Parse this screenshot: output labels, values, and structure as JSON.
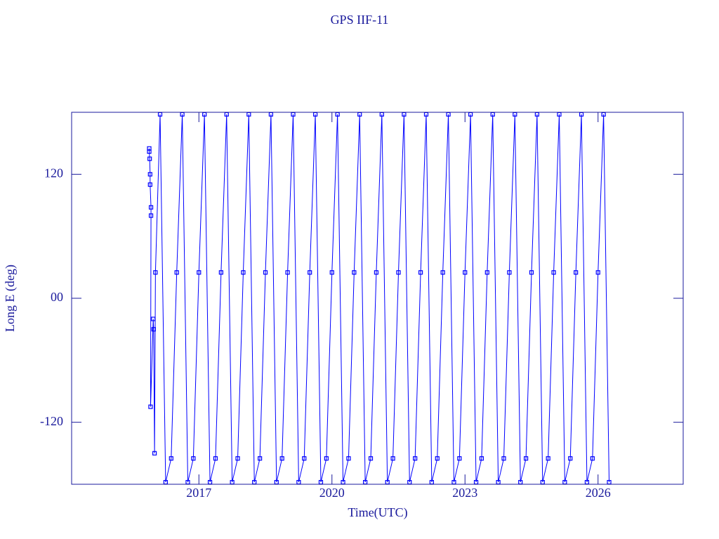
{
  "chart_data": {
    "type": "line",
    "title": "GPS IIF-11",
    "x_label": "Time(UTC)",
    "y_label": "Long E (deg)",
    "xlim": [
      2014.13,
      2027.92
    ],
    "xticks": [
      2017,
      2020,
      2023,
      2026
    ],
    "ylim": [
      -180,
      180
    ],
    "yticks": [
      -120,
      {
        "value": 0,
        "label": "00"
      },
      120
    ],
    "series": [
      {
        "color": "#0000ff",
        "x": [
          2015.88,
          2015.88,
          2015.89,
          2015.9,
          2015.9,
          2015.92,
          2015.92,
          2015.91,
          2015.97,
          2015.98,
          2016.0,
          2016.02,
          2016.125,
          2016.25,
          2016.375,
          2016.5,
          2016.625,
          2016.75,
          2016.875,
          2017,
          2017.125,
          2017.25,
          2017.375,
          2017.5,
          2017.625,
          2017.75,
          2017.875,
          2018,
          2018.125,
          2018.25,
          2018.375,
          2018.5,
          2018.625,
          2018.75,
          2018.875,
          2019,
          2019.125,
          2019.25,
          2019.375,
          2019.5,
          2019.625,
          2019.75,
          2019.875,
          2020,
          2020.125,
          2020.25,
          2020.375,
          2020.5,
          2020.625,
          2020.75,
          2020.875,
          2021,
          2021.125,
          2021.25,
          2021.375,
          2021.5,
          2021.625,
          2021.75,
          2021.875,
          2022,
          2022.125,
          2022.25,
          2022.375,
          2022.5,
          2022.625,
          2022.75,
          2022.875,
          2023,
          2023.125,
          2023.25,
          2023.375,
          2023.5,
          2023.625,
          2023.75,
          2023.875,
          2024,
          2024.125,
          2024.25,
          2024.375,
          2024.5,
          2024.625,
          2024.75,
          2024.875,
          2025,
          2025.125,
          2025.25,
          2025.375,
          2025.5,
          2025.625,
          2025.75,
          2025.875,
          2026,
          2026.125,
          2026.25
        ],
        "values": [
          145,
          142,
          135,
          120,
          110,
          88,
          80,
          -105,
          -20,
          -30,
          -150,
          25,
          178,
          -178,
          -155,
          25,
          178,
          -178,
          -155,
          25,
          178,
          -178,
          -155,
          25,
          178,
          -178,
          -155,
          25,
          178,
          -178,
          -155,
          25,
          178,
          -178,
          -155,
          25,
          178,
          -178,
          -155,
          25,
          178,
          -178,
          -155,
          25,
          178,
          -178,
          -155,
          25,
          178,
          -178,
          -155,
          25,
          178,
          -178,
          -155,
          25,
          178,
          -178,
          -155,
          25,
          178,
          -178,
          -155,
          25,
          178,
          -178,
          -155,
          25,
          178,
          -178,
          -155,
          25,
          178,
          -178,
          -155,
          25,
          178,
          -178,
          -155,
          25,
          178,
          -178,
          -155,
          25,
          178,
          -178,
          -155,
          25,
          178,
          -178,
          -155,
          25,
          178,
          -178
        ]
      }
    ]
  }
}
